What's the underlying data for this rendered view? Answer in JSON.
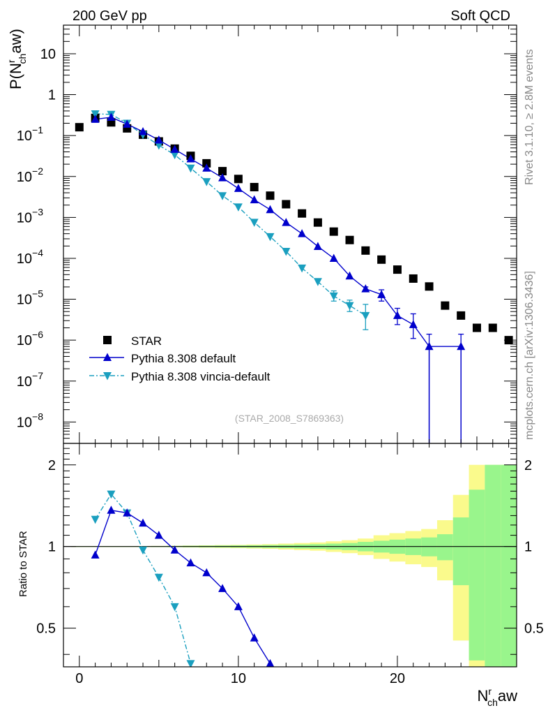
{
  "header": {
    "left": "200 GeV pp",
    "right": "Soft QCD"
  },
  "side_labels": {
    "rivet": "Rivet 3.1.10, ≥ 2.8M events",
    "source": "mcplots.cern.ch [arXiv:1306.3436]"
  },
  "analysis_tag": "(STAR_2008_S7869363)",
  "axes": {
    "x": {
      "base": "N",
      "sub": "ch",
      "sup": "r",
      "tail": "aw"
    },
    "y_top": {
      "prefix": "P(N",
      "sup": "r",
      "sub": "ch",
      "tail": "aw)"
    },
    "y_bottom": "Ratio to STAR",
    "x_ticks": [
      "0",
      "10",
      "20"
    ],
    "y_top_ticks": [
      {
        "base": "10",
        "exp": ""
      },
      {
        "base": "1",
        "exp": ""
      },
      {
        "base": "10",
        "exp": "−1"
      },
      {
        "base": "10",
        "exp": "−2"
      },
      {
        "base": "10",
        "exp": "−3"
      },
      {
        "base": "10",
        "exp": "−4"
      },
      {
        "base": "10",
        "exp": "−5"
      },
      {
        "base": "10",
        "exp": "−6"
      },
      {
        "base": "10",
        "exp": "−7"
      },
      {
        "base": "10",
        "exp": "−8"
      }
    ],
    "y_bottom_ticks": [
      "2",
      "1",
      "0.5"
    ]
  },
  "legend": {
    "star": "STAR",
    "default": "Pythia 8.308 default",
    "vincia": "Pythia 8.308 vincia-default"
  },
  "colors": {
    "star": "#000000",
    "default": "#0000cc",
    "vincia": "#1a9fbf",
    "band_inner": "#99f58c",
    "band_outer": "#fafa8c"
  },
  "chart_data": [
    {
      "type": "scatter",
      "panel": "distribution",
      "y_scale": "log",
      "xlim": [
        -1,
        27.5
      ],
      "ylim": [
        3e-09,
        50
      ],
      "series": [
        {
          "name": "STAR",
          "x": [
            0,
            1,
            2,
            3,
            4,
            5,
            6,
            7,
            8,
            9,
            10,
            11,
            12,
            13,
            14,
            15,
            16,
            17,
            18,
            19,
            20,
            21,
            22,
            23,
            24,
            25,
            26,
            27
          ],
          "y": [
            0.16,
            0.27,
            0.21,
            0.15,
            0.105,
            0.072,
            0.048,
            0.032,
            0.021,
            0.0135,
            0.0087,
            0.0055,
            0.0034,
            0.0021,
            0.00125,
            0.00075,
            0.00045,
            0.00028,
            0.000155,
            9.3e-05,
            5.3e-05,
            3.2e-05,
            2.05e-05,
            7e-06,
            4e-06,
            2e-06,
            2e-06,
            1e-06
          ]
        },
        {
          "name": "Pythia 8.308 default",
          "x": [
            1,
            2,
            3,
            4,
            5,
            6,
            7,
            8,
            9,
            10,
            11,
            12,
            13,
            14,
            15,
            16,
            17,
            18,
            19,
            20,
            21,
            22,
            24
          ],
          "y": [
            0.25,
            0.28,
            0.19,
            0.125,
            0.078,
            0.046,
            0.027,
            0.016,
            0.0093,
            0.0051,
            0.0027,
            0.00155,
            0.00075,
            0.0004,
            0.000195,
            0.0001,
            3.7e-05,
            1.8e-05,
            1.3e-05,
            4e-06,
            2.4e-06,
            7e-07,
            7e-07
          ],
          "y_err_low": [
            0,
            0,
            0,
            0,
            0,
            0,
            0,
            0,
            0,
            0,
            0,
            0,
            0,
            0,
            0,
            0,
            0,
            2e-06,
            4e-06,
            1.6e-06,
            1.3e-06,
            1e-06,
            1e-06
          ],
          "y_err_high": [
            0,
            0,
            0,
            0,
            0,
            0,
            0,
            0,
            0,
            0,
            0,
            0,
            0,
            0,
            0,
            0,
            0,
            2e-06,
            4e-06,
            2e-06,
            2e-06,
            7e-07,
            7e-07
          ]
        },
        {
          "name": "Pythia 8.308 vincia-default",
          "x": [
            1,
            2,
            3,
            4,
            5,
            6,
            7,
            8,
            9,
            10,
            11,
            12,
            13,
            14,
            15,
            16,
            17,
            18
          ],
          "y": [
            0.34,
            0.33,
            0.2,
            0.105,
            0.058,
            0.034,
            0.016,
            0.0075,
            0.0034,
            0.0018,
            0.00076,
            0.00034,
            0.000148,
            5.8e-05,
            2.7e-05,
            1.2e-05,
            7e-06,
            4e-06
          ],
          "y_err_low": [
            0,
            0,
            0,
            0,
            0,
            0,
            0,
            0,
            0,
            0,
            0,
            0,
            0,
            0,
            0,
            3e-06,
            2e-06,
            2.2e-06
          ],
          "y_err_high": [
            0,
            0,
            0,
            0,
            0,
            0,
            0,
            0,
            0,
            0,
            0,
            0,
            0,
            0,
            0,
            4e-06,
            2.5e-06,
            3.5e-06
          ]
        }
      ]
    },
    {
      "type": "line",
      "panel": "ratio",
      "y_scale": "log",
      "xlim": [
        -1,
        27.5
      ],
      "ylim": [
        0.36,
        2.4
      ],
      "reference_line": 1,
      "uncertainty_band": {
        "x_low": [
          0,
          1,
          2,
          3,
          4,
          5,
          6,
          7,
          8,
          9,
          10,
          11,
          12,
          13,
          14,
          15,
          16,
          17,
          18,
          19,
          20,
          21,
          22,
          23,
          24,
          25,
          26,
          27
        ],
        "x_high": [
          1,
          2,
          3,
          4,
          5,
          6,
          7,
          8,
          9,
          10,
          11,
          12,
          13,
          14,
          15,
          16,
          17,
          18,
          19,
          20,
          21,
          22,
          23,
          24,
          25,
          26,
          27,
          28
        ],
        "inner": [
          0.003,
          0.003,
          0.003,
          0.003,
          0.003,
          0.004,
          0.005,
          0.006,
          0.007,
          0.008,
          0.009,
          0.01,
          0.012,
          0.014,
          0.017,
          0.02,
          0.025,
          0.03,
          0.04,
          0.05,
          0.06,
          0.07,
          0.08,
          0.11,
          0.28,
          0.62,
          1.0,
          1.0
        ],
        "outer": [
          0.004,
          0.004,
          0.004,
          0.004,
          0.004,
          0.005,
          0.006,
          0.008,
          0.01,
          0.012,
          0.014,
          0.017,
          0.02,
          0.025,
          0.03,
          0.035,
          0.045,
          0.055,
          0.07,
          0.1,
          0.12,
          0.14,
          0.16,
          0.25,
          0.55,
          1.0,
          1.0,
          1.0
        ]
      },
      "series": [
        {
          "name": "Pythia 8.308 default",
          "x": [
            1,
            2,
            3,
            4,
            5,
            6,
            7,
            8,
            9,
            10,
            11,
            12
          ],
          "y": [
            0.93,
            1.36,
            1.33,
            1.22,
            1.1,
            0.97,
            0.87,
            0.8,
            0.7,
            0.6,
            0.46,
            0.37
          ]
        },
        {
          "name": "Pythia 8.308 vincia-default",
          "x": [
            1,
            2,
            3,
            4,
            5,
            6,
            7
          ],
          "y": [
            1.26,
            1.56,
            1.33,
            0.97,
            0.77,
            0.6,
            0.37
          ]
        }
      ]
    }
  ]
}
